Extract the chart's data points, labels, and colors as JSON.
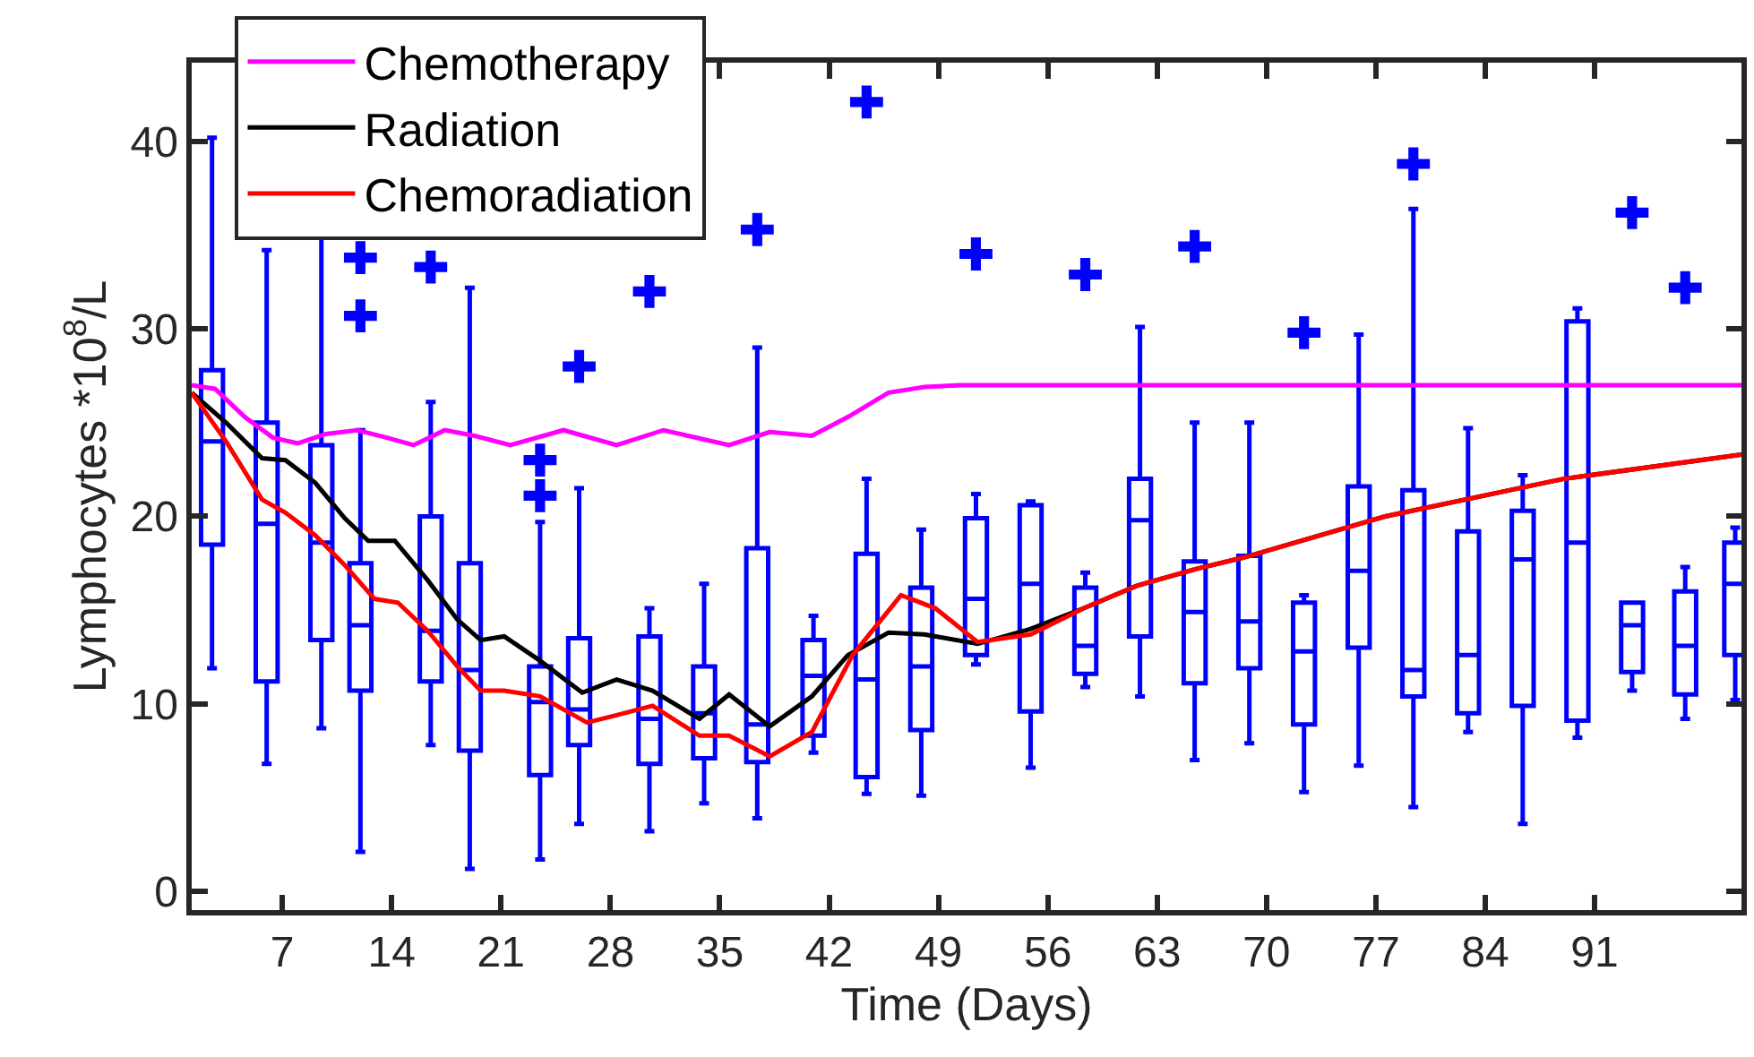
{
  "chart_data": {
    "type": "box",
    "xlabel": "Time (Days)",
    "ylabel": "Lymphocytes *10$^{8}$/L",
    "xlim": [
      1.2,
      100.4
    ],
    "xticks": [
      7,
      14,
      21,
      28,
      35,
      42,
      49,
      56,
      63,
      70,
      77,
      84,
      91
    ],
    "ylim": [
      -1,
      44.2
    ],
    "yticks": [
      0,
      10,
      20,
      30,
      40
    ],
    "legend": "top left",
    "color": "#0000ff",
    "x": [
      2.5,
      6,
      9.5,
      12,
      16.5,
      19,
      23.5,
      26,
      30.5,
      34,
      37.4,
      41,
      44.4,
      47.9,
      51.4,
      54.9,
      58.4,
      61.9,
      65.4,
      68.9,
      72.4,
      75.9,
      79.4,
      82.9,
      86.4,
      89.9,
      93.4,
      96.8,
      100
    ],
    "boxes": [
      {
        "low": 11.9,
        "q1": 18.5,
        "median": 24.0,
        "q3": 27.8,
        "high": 40.2
      },
      {
        "low": 6.8,
        "q1": 11.2,
        "median": 19.6,
        "q3": 25.0,
        "high": 34.2
      },
      {
        "low": 8.7,
        "q1": 13.4,
        "median": 18.6,
        "q3": 23.8,
        "high": 35.5
      },
      {
        "low": 2.1,
        "q1": 10.7,
        "median": 14.2,
        "q3": 17.5,
        "high": 24.6,
        "outliers": [
          33.8,
          30.7
        ]
      },
      {
        "low": 7.8,
        "q1": 11.2,
        "median": 13.9,
        "q3": 20.0,
        "high": 26.1,
        "outliers": [
          33.3
        ]
      },
      {
        "low": 1.2,
        "q1": 7.5,
        "median": 11.8,
        "q3": 17.5,
        "high": 32.2
      },
      {
        "low": 1.7,
        "q1": 6.2,
        "median": 10.1,
        "q3": 12.0,
        "high": 19.7,
        "outliers": [
          23.0,
          21.1
        ]
      },
      {
        "low": 3.6,
        "q1": 7.8,
        "median": 9.7,
        "q3": 13.5,
        "high": 21.5,
        "outliers": [
          28.0
        ]
      },
      {
        "low": 3.2,
        "q1": 6.8,
        "median": 9.2,
        "q3": 13.6,
        "high": 15.1,
        "outliers": [
          32.0
        ]
      },
      {
        "low": 4.7,
        "q1": 7.1,
        "median": 9.5,
        "q3": 12.0,
        "high": 16.4
      },
      {
        "low": 3.9,
        "q1": 6.9,
        "median": 8.9,
        "q3": 18.3,
        "high": 29.0,
        "outliers": [
          35.3
        ]
      },
      {
        "low": 7.4,
        "q1": 8.3,
        "median": 11.5,
        "q3": 13.4,
        "high": 14.7
      },
      {
        "low": 5.2,
        "q1": 6.1,
        "median": 11.3,
        "q3": 18.0,
        "high": 22.0,
        "outliers": [
          42.1
        ]
      },
      {
        "low": 5.1,
        "q1": 8.6,
        "median": 12.0,
        "q3": 16.2,
        "high": 19.3
      },
      {
        "low": 12.1,
        "q1": 12.6,
        "median": 15.6,
        "q3": 19.9,
        "high": 21.2,
        "outliers": [
          34.0
        ]
      },
      {
        "low": 6.6,
        "q1": 9.6,
        "median": 16.4,
        "q3": 20.6,
        "high": 20.8
      },
      {
        "low": 10.9,
        "q1": 11.6,
        "median": 13.1,
        "q3": 16.2,
        "high": 17.0,
        "outliers": [
          32.9
        ]
      },
      {
        "low": 10.4,
        "q1": 13.6,
        "median": 19.8,
        "q3": 22.0,
        "high": 30.1
      },
      {
        "low": 7.0,
        "q1": 11.1,
        "median": 14.9,
        "q3": 17.6,
        "high": 25.0,
        "outliers": [
          34.4
        ]
      },
      {
        "low": 7.9,
        "q1": 11.9,
        "median": 14.4,
        "q3": 17.9,
        "high": 25.0
      },
      {
        "low": 5.3,
        "q1": 8.9,
        "median": 12.8,
        "q3": 15.4,
        "high": 15.8,
        "outliers": [
          29.8
        ]
      },
      {
        "low": 6.7,
        "q1": 13.0,
        "median": 17.1,
        "q3": 21.6,
        "high": 29.7
      },
      {
        "low": 4.5,
        "q1": 10.4,
        "median": 11.8,
        "q3": 21.4,
        "high": 36.4,
        "outliers": [
          38.8
        ]
      },
      {
        "low": 8.5,
        "q1": 9.5,
        "median": 12.6,
        "q3": 19.2,
        "high": 24.7
      },
      {
        "low": 3.6,
        "q1": 9.9,
        "median": 17.7,
        "q3": 20.3,
        "high": 22.2
      },
      {
        "low": 8.2,
        "q1": 9.1,
        "median": 18.6,
        "q3": 30.4,
        "high": 31.1
      },
      {
        "low": 10.7,
        "q1": 11.7,
        "median": 14.2,
        "q3": 15.4,
        "high": 15.4,
        "outliers": [
          36.2
        ]
      },
      {
        "low": 9.2,
        "q1": 10.5,
        "median": 13.1,
        "q3": 16.0,
        "high": 17.3,
        "outliers": [
          32.2
        ]
      },
      {
        "low": 10.2,
        "q1": 12.6,
        "median": 16.4,
        "q3": 18.6,
        "high": 19.4
      }
    ],
    "series": [
      {
        "type": "line",
        "name": "Chemotherapy",
        "color": "#ff00ff",
        "x": [
          1.2,
          2.7,
          4.6,
          6.4,
          8.0,
          9.8,
          11.8,
          13.7,
          15.4,
          17.4,
          19.3,
          21.6,
          25.0,
          28.4,
          31.4,
          35.6,
          38.2,
          40.9,
          43.2,
          45.8,
          48.1,
          50.4,
          60,
          70,
          80,
          90,
          100.4
        ],
        "values": [
          27.0,
          26.8,
          25.3,
          24.2,
          23.9,
          24.4,
          24.6,
          24.2,
          23.8,
          24.6,
          24.3,
          23.8,
          24.6,
          23.8,
          24.6,
          23.8,
          24.5,
          24.3,
          25.3,
          26.6,
          26.9,
          27.0,
          27.0,
          27.0,
          27.0,
          27.0,
          27.0
        ]
      },
      {
        "type": "line",
        "name": "Radiation",
        "color": "#000000",
        "x": [
          1.2,
          3.4,
          5.7,
          7.2,
          9.1,
          11.0,
          12.5,
          14.2,
          16.3,
          18.2,
          19.7,
          21.2,
          23.5,
          26.2,
          28.4,
          30.7,
          33.7,
          35.6,
          38.2,
          40.9,
          43.2,
          45.8,
          48.1,
          51.5,
          54.9,
          58.3,
          61.7,
          65.5,
          68.5,
          77.6,
          89.0,
          100.4
        ],
        "values": [
          26.6,
          25.0,
          23.1,
          23.0,
          21.8,
          19.9,
          18.7,
          18.7,
          16.6,
          14.5,
          13.4,
          13.6,
          12.3,
          10.6,
          11.3,
          10.7,
          9.2,
          10.5,
          8.8,
          10.4,
          12.6,
          13.8,
          13.7,
          13.2,
          14.0,
          15.1,
          16.3,
          17.2,
          17.8,
          20.0,
          22.0,
          23.3
        ]
      },
      {
        "type": "line",
        "name": "Chemoradiation",
        "color": "#ff0000",
        "x": [
          1.2,
          3.4,
          5.7,
          7.2,
          9.1,
          11.0,
          12.9,
          14.4,
          16.3,
          18.2,
          19.7,
          21.2,
          23.5,
          26.5,
          28.4,
          30.7,
          33.7,
          35.6,
          38.2,
          40.9,
          43.5,
          46.6,
          48.8,
          51.5,
          54.9,
          58.3,
          61.7,
          65.5,
          68.5,
          77.6,
          89.0,
          100.4
        ],
        "values": [
          26.6,
          24.0,
          20.9,
          20.2,
          19.0,
          17.4,
          15.6,
          15.4,
          13.9,
          12.0,
          10.7,
          10.7,
          10.4,
          9.0,
          9.4,
          9.9,
          8.3,
          8.3,
          7.2,
          8.5,
          12.6,
          15.8,
          15.1,
          13.3,
          13.7,
          15.1,
          16.3,
          17.2,
          17.8,
          20.0,
          22.0,
          23.3
        ]
      }
    ]
  }
}
